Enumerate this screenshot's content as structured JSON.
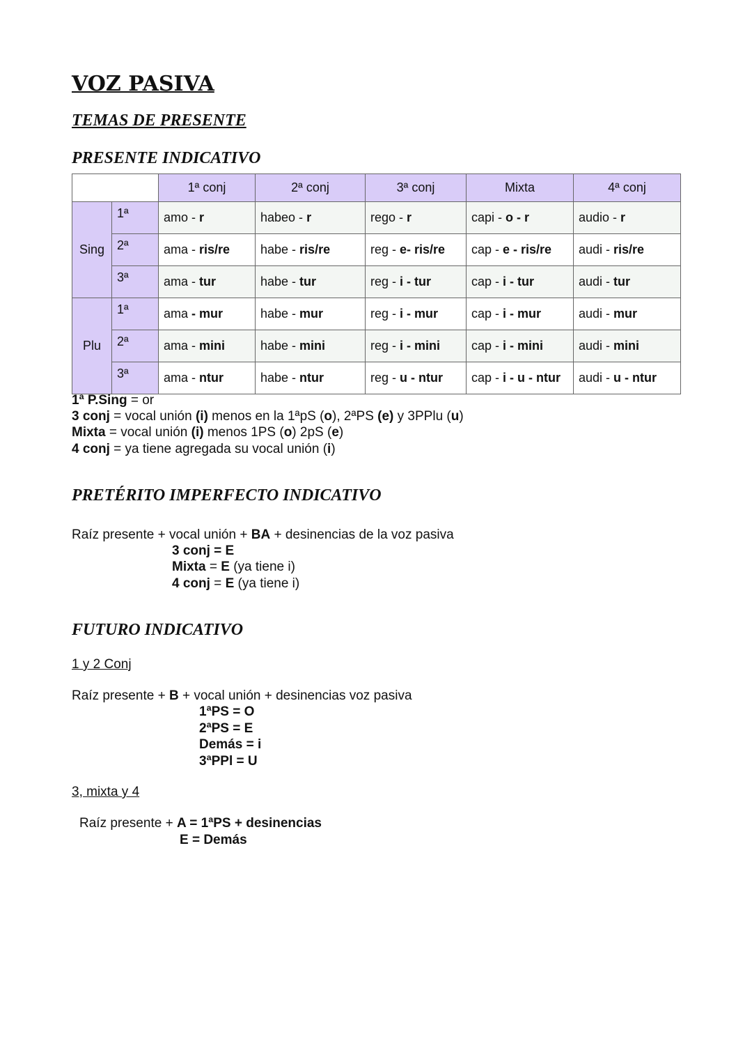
{
  "title": "VOZ PASIVA",
  "subtitle": "TEMAS DE PRESENTE",
  "presente": {
    "heading": "PRESENTE INDICATIVO",
    "headers": [
      "1ª conj",
      "2ª conj",
      "3ª conj",
      "Mixta",
      "4ª conj"
    ],
    "groups": [
      "Sing",
      "Plu"
    ],
    "persons": [
      "1ª",
      "2ª",
      "3ª",
      "1ª",
      "2ª",
      "3ª"
    ],
    "rows": [
      [
        [
          {
            "t": "amo - "
          },
          {
            "t": "r",
            "b": true
          }
        ],
        [
          {
            "t": "habeo - "
          },
          {
            "t": "r",
            "b": true
          }
        ],
        [
          {
            "t": "rego - "
          },
          {
            "t": "r",
            "b": true
          }
        ],
        [
          {
            "t": "capi - "
          },
          {
            "t": "o - r",
            "b": true
          }
        ],
        [
          {
            "t": "audio - "
          },
          {
            "t": "r",
            "b": true
          }
        ]
      ],
      [
        [
          {
            "t": "ama - "
          },
          {
            "t": "ris/re",
            "b": true
          }
        ],
        [
          {
            "t": "habe - "
          },
          {
            "t": "ris/re",
            "b": true
          }
        ],
        [
          {
            "t": "reg - "
          },
          {
            "t": "e- ris/re",
            "b": true
          }
        ],
        [
          {
            "t": "cap - "
          },
          {
            "t": "e - ris/re",
            "b": true
          }
        ],
        [
          {
            "t": "audi - "
          },
          {
            "t": "ris/re",
            "b": true
          }
        ]
      ],
      [
        [
          {
            "t": "ama - "
          },
          {
            "t": "tur",
            "b": true
          }
        ],
        [
          {
            "t": "habe - "
          },
          {
            "t": "tur",
            "b": true
          }
        ],
        [
          {
            "t": "reg - "
          },
          {
            "t": "i - tur",
            "b": true
          }
        ],
        [
          {
            "t": "cap - "
          },
          {
            "t": "i - tur",
            "b": true
          }
        ],
        [
          {
            "t": "audi - "
          },
          {
            "t": "tur",
            "b": true
          }
        ]
      ],
      [
        [
          {
            "t": "ama "
          },
          {
            "t": "- mur",
            "b": true
          }
        ],
        [
          {
            "t": "habe - "
          },
          {
            "t": "mur",
            "b": true
          }
        ],
        [
          {
            "t": "reg - "
          },
          {
            "t": "i - mur",
            "b": true
          }
        ],
        [
          {
            "t": "cap - "
          },
          {
            "t": "i - mur",
            "b": true
          }
        ],
        [
          {
            "t": "audi - "
          },
          {
            "t": "mur",
            "b": true
          }
        ]
      ],
      [
        [
          {
            "t": "ama - "
          },
          {
            "t": "mini",
            "b": true
          }
        ],
        [
          {
            "t": "habe - "
          },
          {
            "t": "mini",
            "b": true
          }
        ],
        [
          {
            "t": "reg - "
          },
          {
            "t": "i - mini",
            "b": true
          }
        ],
        [
          {
            "t": "cap - "
          },
          {
            "t": "i - mini",
            "b": true
          }
        ],
        [
          {
            "t": "audi - "
          },
          {
            "t": "mini",
            "b": true
          }
        ]
      ],
      [
        [
          {
            "t": "ama - "
          },
          {
            "t": "ntur",
            "b": true
          }
        ],
        [
          {
            "t": "habe - "
          },
          {
            "t": "ntur",
            "b": true
          }
        ],
        [
          {
            "t": "reg - "
          },
          {
            "t": "u - ntur",
            "b": true
          }
        ],
        [
          {
            "t": "cap - "
          },
          {
            "t": "i - u - ntur",
            "b": true
          }
        ],
        [
          {
            "t": "audi - "
          },
          {
            "t": "u - ntur",
            "b": true
          }
        ]
      ]
    ],
    "notes": [
      [
        {
          "t": "1ª P.Sing",
          "b": true
        },
        {
          "t": " = or"
        }
      ],
      [
        {
          "t": "3 conj",
          "b": true
        },
        {
          "t": " = vocal unión "
        },
        {
          "t": "(i)",
          "b": true
        },
        {
          "t": " menos en la 1ªpS ("
        },
        {
          "t": "o",
          "b": true
        },
        {
          "t": "), 2ªPS "
        },
        {
          "t": "(e)",
          "b": true
        },
        {
          "t": " y 3PPlu ("
        },
        {
          "t": "u",
          "b": true
        },
        {
          "t": ")"
        }
      ],
      [
        {
          "t": "Mixta",
          "b": true
        },
        {
          "t": " = vocal unión "
        },
        {
          "t": "(i)",
          "b": true
        },
        {
          "t": " menos 1PS ("
        },
        {
          "t": "o",
          "b": true
        },
        {
          "t": ") 2pS ("
        },
        {
          "t": "e",
          "b": true
        },
        {
          "t": ")"
        }
      ],
      [
        {
          "t": "4 conj",
          "b": true
        },
        {
          "t": " = ya tiene agregada su vocal unión ("
        },
        {
          "t": "i",
          "b": true
        },
        {
          "t": ")"
        }
      ]
    ]
  },
  "imperfecto": {
    "heading": "PRETÉRITO IMPERFECTO INDICATIVO",
    "formula": [
      {
        "t": "Raíz presente + vocal unión + "
      },
      {
        "t": "BA",
        "b": true
      },
      {
        "t": " + desinencias de la voz pasiva"
      }
    ],
    "cases": [
      [
        {
          "t": "3 conj = E",
          "b": true
        }
      ],
      [
        {
          "t": "Mixta",
          "b": true
        },
        {
          "t": " = "
        },
        {
          "t": "E",
          "b": true
        },
        {
          "t": " (ya tiene i)"
        }
      ],
      [
        {
          "t": "4 conj",
          "b": true
        },
        {
          "t": " = "
        },
        {
          "t": "E",
          "b": true
        },
        {
          "t": " (ya tiene i)"
        }
      ]
    ]
  },
  "futuro": {
    "heading": "FUTURO INDICATIVO",
    "sub1": "1 y 2 Conj",
    "formula1": [
      {
        "t": "Raíz presente + "
      },
      {
        "t": "B",
        "b": true
      },
      {
        "t": " + vocal unión + desinencias voz pasiva"
      }
    ],
    "cases1": [
      [
        {
          "t": "1ªPS = O",
          "b": true
        }
      ],
      [
        {
          "t": "2ªPS = E",
          "b": true
        }
      ],
      [
        {
          "t": "Demás = i",
          "b": true
        }
      ],
      [
        {
          "t": "3ªPPl = U",
          "b": true
        }
      ]
    ],
    "sub2": "3, mixta y 4",
    "formula2": [
      {
        "t": "Raíz presente + "
      },
      {
        "t": "A = 1ªPS + desinencias",
        "b": true
      }
    ],
    "formula2b": [
      {
        "t": "E = Demás",
        "b": true
      }
    ]
  }
}
